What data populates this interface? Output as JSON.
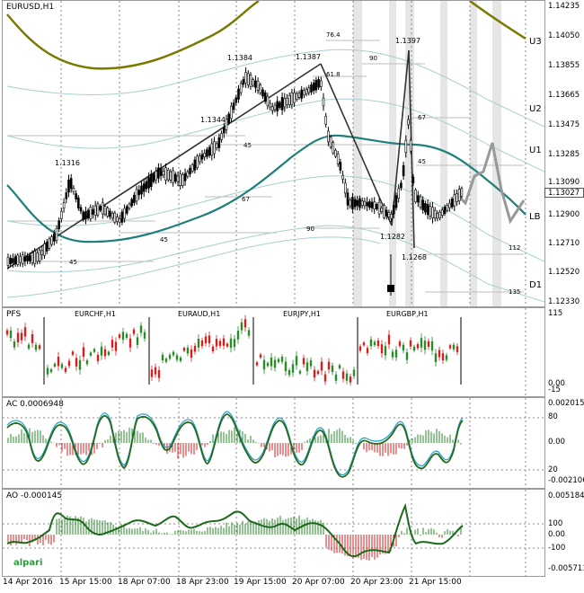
{
  "main": {
    "symbol": "EURUSD,H1",
    "price_axis": [
      "1.14235",
      "1.14050",
      "1.13855",
      "1.13665",
      "1.13475",
      "1.13285",
      "1.13090",
      "1.12900",
      "1.12710",
      "1.12520",
      "1.12330"
    ],
    "current_price": "1.13027",
    "level_labels": [
      "U3",
      "U2",
      "U1",
      "LB",
      "D1"
    ],
    "price_marks": [
      "1.1316",
      "1.1344",
      "1.1384",
      "1.1387",
      "1.1397",
      "1.1282",
      "1.1268"
    ],
    "fib_labels": [
      "76.4",
      "61.8",
      "45",
      "45",
      "45",
      "45",
      "67",
      "67",
      "90",
      "90",
      "112",
      "135"
    ]
  },
  "pfs": {
    "label": "PFS",
    "symbols": [
      "EURCHF,H1",
      "EURAUD,H1",
      "EURJPY,H1",
      "EURGBP,H1"
    ],
    "axis": [
      "115",
      "0.00",
      "-15"
    ]
  },
  "ac": {
    "label": "AC 0.0006948",
    "axis": [
      "0.002015",
      "80",
      "0.00",
      "20",
      "-0.002106"
    ]
  },
  "ao": {
    "label": "AO -0.000145",
    "axis": [
      "0.005184",
      "100",
      "0.00",
      "-100",
      "-0.005711"
    ]
  },
  "time_axis": [
    "14 Apr 2016",
    "15 Apr 15:00",
    "18 Apr 07:00",
    "18 Apr 23:00",
    "19 Apr 15:00",
    "20 Apr 07:00",
    "20 Apr 23:00",
    "21 Apr 15:00"
  ],
  "brand": "alpari",
  "colors": {
    "olive": "#7a7a00",
    "teal": "#1f7f7a",
    "bull": "#2a8a2a",
    "bear": "#d02020",
    "grid": "#bcbcbc"
  }
}
